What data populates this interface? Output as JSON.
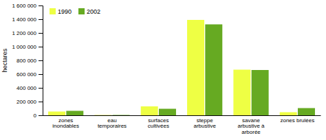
{
  "chart_data": {
    "type": "bar",
    "categories": [
      "zones\ninondables",
      "eau\ntemporaires",
      "surfaces\ncultivées",
      "steppe\narbustive",
      "savane\narbustive à\narborée",
      "zones brulées"
    ],
    "series": [
      {
        "name": "1990",
        "color": "#eeff44",
        "values": [
          55000,
          5000,
          130000,
          1390000,
          665000,
          45000
        ]
      },
      {
        "name": "2002",
        "color": "#66aa22",
        "values": [
          65000,
          5000,
          95000,
          1325000,
          660000,
          105000
        ]
      }
    ],
    "ylabel": "hectares",
    "ylim": [
      0,
      1600000
    ],
    "yticks": [
      0,
      {
        "value": 200000,
        "label": "200 000"
      },
      {
        "value": 400000,
        "label": "400 000"
      },
      {
        "value": 600000,
        "label": "600 000"
      },
      {
        "value": 800000,
        "label": "800 000"
      },
      {
        "value": 1000000,
        "label": "1 000 000"
      },
      {
        "value": 1200000,
        "label": "1 200 000"
      },
      {
        "value": 1400000,
        "label": "1 400 000"
      },
      {
        "value": 1600000,
        "label": "1 600 000"
      }
    ],
    "legend": "top-left",
    "grid": false
  }
}
